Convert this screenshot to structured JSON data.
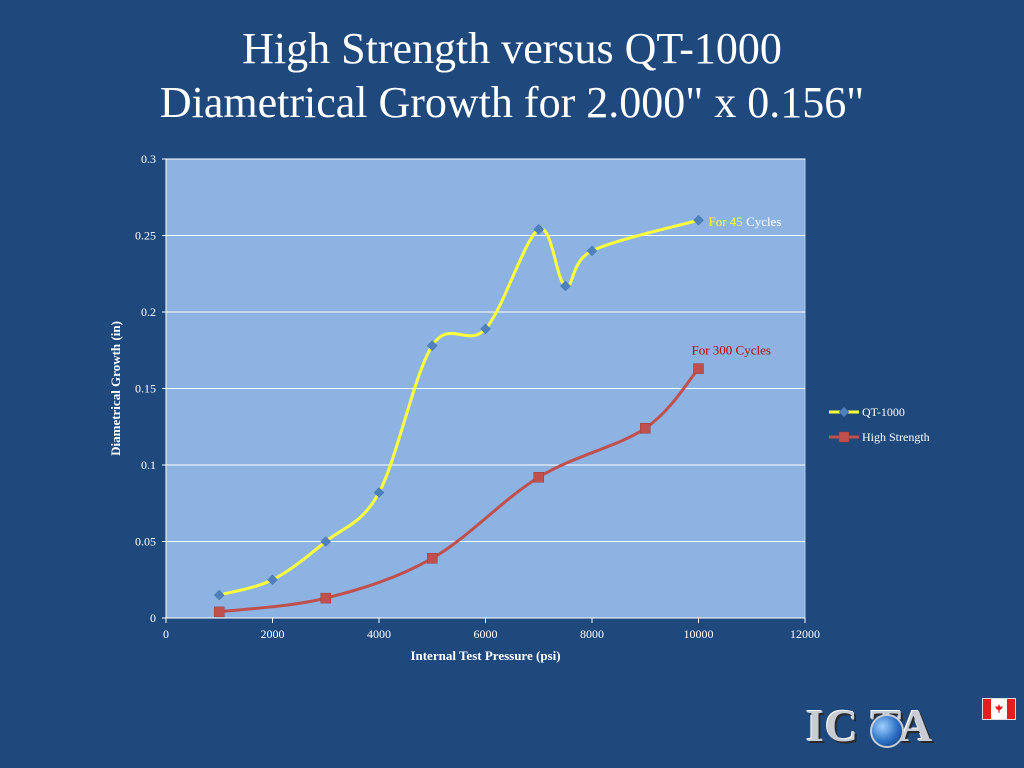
{
  "title_lines": [
    "High Strength versus QT-1000",
    "Diametrical Growth for 2.000\" x 0.156\""
  ],
  "logo": {
    "text": "IC  TA",
    "flag": "canadian-flag-icon"
  },
  "colors": {
    "background": "#1f497d",
    "plot_area": "#8db3e2",
    "qt_line": "#ffff3c",
    "qt_marker": "#4f81bd",
    "hs_line": "#c0504d",
    "hs_marker": "#c0504d",
    "gridline": "#ffffff",
    "annotation_yellow": "#ffff3c",
    "annotation_red": "#c00000"
  },
  "chart_data": {
    "type": "line",
    "xlabel": "Internal Test Pressure (psi)",
    "ylabel": "Diametrical Growth (in)",
    "xlim": [
      0,
      12000
    ],
    "ylim": [
      0,
      0.3
    ],
    "x_ticks": [
      0,
      2000,
      4000,
      6000,
      8000,
      10000,
      12000
    ],
    "y_ticks": [
      0,
      0.05,
      0.1,
      0.15,
      0.2,
      0.25,
      0.3
    ],
    "x_tick_labels": [
      "0",
      "2000",
      "4000",
      "6000",
      "8000",
      "10000",
      "12000"
    ],
    "y_tick_labels": [
      "0",
      "0.05",
      "0.1",
      "0.15",
      "0.2",
      "0.25",
      "0.3"
    ],
    "grid": "horizontal",
    "legend_position": "right",
    "smooth": true,
    "series": [
      {
        "name": "QT-1000",
        "marker": "diamond",
        "points": [
          [
            1000,
            0.015
          ],
          [
            2000,
            0.025
          ],
          [
            3000,
            0.05
          ],
          [
            4000,
            0.082
          ],
          [
            5000,
            0.178
          ],
          [
            6000,
            0.189
          ],
          [
            7000,
            0.254
          ],
          [
            7500,
            0.217
          ],
          [
            8000,
            0.24
          ],
          [
            10000,
            0.26
          ]
        ]
      },
      {
        "name": "High Strength",
        "marker": "square",
        "points": [
          [
            1000,
            0.004
          ],
          [
            3000,
            0.013
          ],
          [
            5000,
            0.039
          ],
          [
            7000,
            0.092
          ],
          [
            9000,
            0.124
          ],
          [
            10000,
            0.163
          ]
        ]
      }
    ],
    "annotations": [
      {
        "parts": [
          "For 45",
          " Cycles"
        ],
        "series": "QT-1000",
        "near_x": 10000
      },
      {
        "parts": [
          "For 300 Cycles"
        ],
        "series": "High Strength",
        "near_x": 10000
      }
    ]
  }
}
